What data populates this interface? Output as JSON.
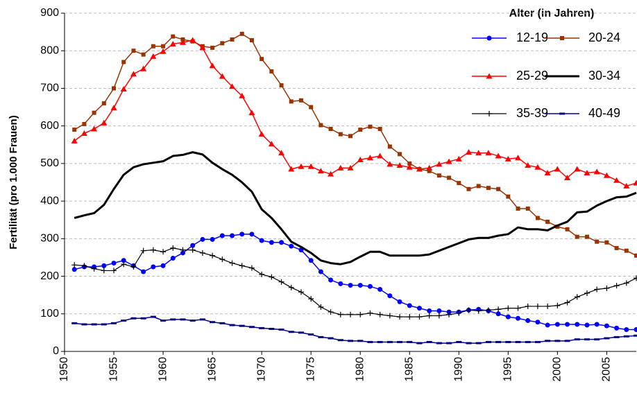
{
  "chart_data": {
    "type": "line",
    "y_label": "Fertilität (pro 1.000 Frauen)",
    "legend_title": "Alter (in Jahren)",
    "legend": "upper right",
    "grid": true,
    "xlim": [
      1950,
      2008
    ],
    "xticks": [
      1950,
      1955,
      1960,
      1965,
      1970,
      1975,
      1980,
      1985,
      1990,
      1995,
      2000,
      2005
    ],
    "ylim": [
      0,
      900
    ],
    "yticks": [
      0,
      100,
      200,
      300,
      400,
      500,
      600,
      700,
      800,
      900
    ],
    "x": [
      1951,
      1952,
      1953,
      1954,
      1955,
      1956,
      1957,
      1958,
      1959,
      1960,
      1961,
      1962,
      1963,
      1964,
      1965,
      1966,
      1967,
      1968,
      1969,
      1970,
      1971,
      1972,
      1973,
      1974,
      1975,
      1976,
      1977,
      1978,
      1979,
      1980,
      1981,
      1982,
      1983,
      1984,
      1985,
      1986,
      1987,
      1988,
      1989,
      1990,
      1991,
      1992,
      1993,
      1994,
      1995,
      1996,
      1997,
      1998,
      1999,
      2000,
      2001,
      2002,
      2003,
      2004,
      2005,
      2006,
      2007,
      2008
    ],
    "series": [
      {
        "name": "12-19",
        "color": "#0000ff",
        "marker": "circle",
        "line_width": 1.5,
        "values": [
          218,
          225,
          225,
          228,
          235,
          242,
          228,
          212,
          225,
          228,
          248,
          262,
          282,
          298,
          298,
          308,
          308,
          312,
          312,
          295,
          290,
          290,
          280,
          270,
          242,
          212,
          190,
          180,
          176,
          176,
          173,
          165,
          148,
          132,
          122,
          115,
          108,
          108,
          105,
          105,
          110,
          112,
          108,
          100,
          92,
          88,
          82,
          78,
          70,
          72,
          72,
          72,
          70,
          72,
          68,
          62,
          58,
          58
        ]
      },
      {
        "name": "20-24",
        "color": "#993300",
        "marker": "square",
        "line_width": 1.5,
        "values": [
          590,
          605,
          635,
          660,
          700,
          770,
          800,
          790,
          812,
          812,
          838,
          830,
          825,
          812,
          808,
          820,
          830,
          845,
          828,
          778,
          745,
          708,
          665,
          668,
          650,
          602,
          592,
          578,
          573,
          590,
          598,
          592,
          545,
          525,
          500,
          485,
          480,
          468,
          462,
          448,
          432,
          440,
          435,
          432,
          412,
          380,
          380,
          355,
          345,
          332,
          325,
          305,
          305,
          292,
          290,
          275,
          268,
          255
        ]
      },
      {
        "name": "25-29",
        "color": "#ff0000",
        "marker": "triangle",
        "line_width": 1.5,
        "values": [
          560,
          580,
          592,
          608,
          648,
          698,
          738,
          752,
          785,
          798,
          818,
          822,
          828,
          808,
          760,
          732,
          705,
          680,
          635,
          578,
          552,
          528,
          485,
          492,
          492,
          480,
          472,
          488,
          488,
          510,
          515,
          520,
          498,
          495,
          490,
          485,
          488,
          498,
          505,
          512,
          530,
          528,
          528,
          520,
          512,
          515,
          495,
          490,
          475,
          485,
          462,
          485,
          475,
          478,
          468,
          455,
          440,
          448
        ]
      },
      {
        "name": "30-34",
        "color": "#000000",
        "marker": "none",
        "line_width": 3,
        "values": [
          355,
          362,
          368,
          390,
          432,
          470,
          490,
          498,
          502,
          506,
          520,
          523,
          530,
          524,
          502,
          485,
          470,
          450,
          425,
          378,
          355,
          325,
          292,
          278,
          262,
          242,
          235,
          232,
          238,
          252,
          265,
          265,
          255,
          255,
          255,
          255,
          258,
          268,
          278,
          288,
          298,
          302,
          302,
          308,
          312,
          330,
          325,
          325,
          322,
          335,
          345,
          370,
          372,
          388,
          400,
          410,
          412,
          422
        ]
      },
      {
        "name": "35-39",
        "color": "#000000",
        "marker": "plus",
        "line_width": 1.2,
        "values": [
          230,
          228,
          220,
          215,
          215,
          232,
          225,
          268,
          270,
          265,
          275,
          270,
          270,
          262,
          255,
          245,
          235,
          228,
          222,
          205,
          198,
          185,
          170,
          158,
          140,
          118,
          105,
          98,
          98,
          98,
          102,
          98,
          95,
          92,
          92,
          92,
          95,
          95,
          98,
          102,
          110,
          108,
          110,
          112,
          115,
          115,
          120,
          120,
          120,
          122,
          130,
          145,
          155,
          165,
          168,
          175,
          182,
          195
        ]
      },
      {
        "name": "40-49",
        "color": "#000080",
        "marker": "dash",
        "line_width": 1.5,
        "values": [
          75,
          72,
          72,
          72,
          75,
          82,
          88,
          88,
          92,
          82,
          85,
          85,
          82,
          85,
          78,
          75,
          70,
          68,
          65,
          62,
          60,
          58,
          52,
          50,
          45,
          38,
          35,
          30,
          28,
          28,
          25,
          25,
          25,
          25,
          25,
          22,
          25,
          22,
          22,
          25,
          22,
          22,
          25,
          25,
          25,
          25,
          25,
          25,
          28,
          28,
          28,
          32,
          32,
          32,
          35,
          38,
          40,
          42
        ]
      }
    ]
  }
}
